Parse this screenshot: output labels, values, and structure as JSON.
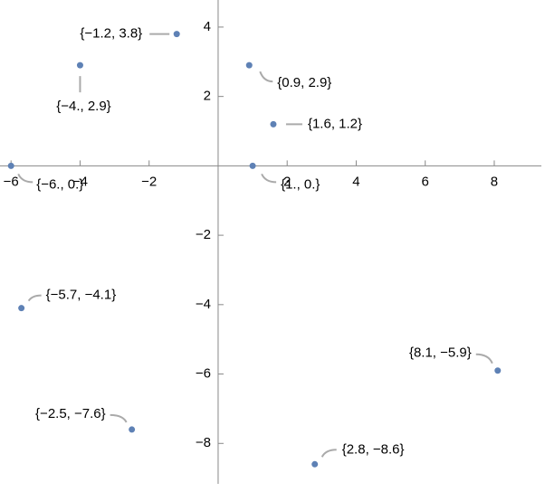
{
  "chart_data": {
    "type": "scatter",
    "xlim": [
      -6.32,
      9.47
    ],
    "ylim": [
      -9.27,
      4.78
    ],
    "xticks": [
      {
        "value": -6,
        "label": "−6"
      },
      {
        "value": -4,
        "label": "−4"
      },
      {
        "value": -2,
        "label": "−2"
      },
      2,
      4,
      6,
      8
    ],
    "yticks": [
      {
        "value": -8,
        "label": "−8"
      },
      {
        "value": -6,
        "label": "−6"
      },
      {
        "value": -4,
        "label": "−4"
      },
      {
        "value": -2,
        "label": "−2"
      },
      2,
      4
    ],
    "series": [
      {
        "color": "#5e81b5",
        "x": [
          -1.2,
          -4,
          0.9,
          1.6,
          -6,
          1,
          -5.7,
          8.1,
          -2.5,
          2.8
        ],
        "values": [
          3.8,
          2.9,
          2.9,
          1.2,
          0,
          0,
          -4.1,
          -5.9,
          -7.6,
          -8.6
        ],
        "value_labels": [
          "{−1.2, 3.8}",
          "{−4., 2.9}",
          "{0.9, 2.9}",
          "{1.6, 1.2}",
          "{−6., 0.}",
          "{1., 0.}",
          "{−5.7, −4.1}",
          "{8.1, −5.9}",
          "{−2.5, −7.6}",
          "{2.8, −8.6}"
        ]
      }
    ]
  }
}
